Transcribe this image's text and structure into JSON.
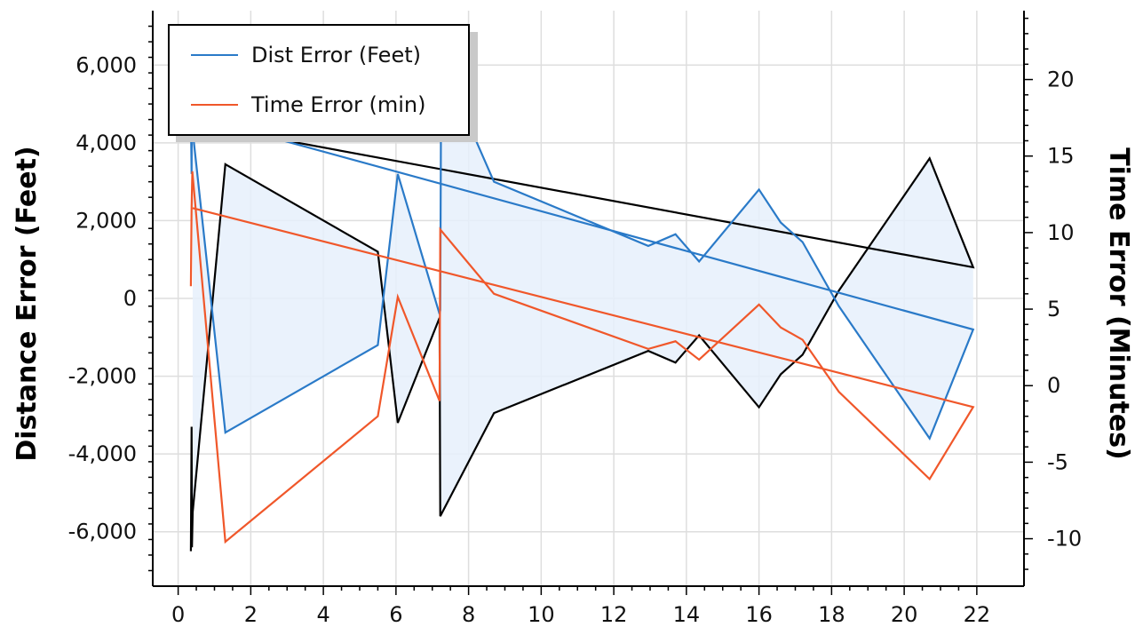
{
  "chart_data": {
    "type": "line",
    "title": "",
    "xlabel": "",
    "ylabel_left": "Distance Error (Feet)",
    "ylabel_right": "Time Error (Minutes)",
    "xlim": [
      -0.7,
      23.3
    ],
    "ylim_left": [
      -7400,
      7400
    ],
    "ylim_right": [
      -13.1,
      24.5
    ],
    "x_ticks": [
      0,
      2,
      4,
      6,
      8,
      10,
      12,
      14,
      16,
      18,
      20,
      22
    ],
    "y_left_ticks": [
      -6000,
      -4000,
      -2000,
      0,
      2000,
      4000,
      6000
    ],
    "y_left_tick_labels": [
      "-6,000",
      "-4,000",
      "-2,000",
      "0",
      "2,000",
      "4,000",
      "6,000"
    ],
    "y_right_ticks": [
      -10,
      -5,
      0,
      5,
      10,
      15,
      20
    ],
    "y_right_tick_labels": [
      "-10",
      "-5",
      "0",
      "5",
      "10",
      "15",
      "20"
    ],
    "grid": true,
    "legend_position": "top-left",
    "colors": {
      "dist": "#2a7ac8",
      "time": "#f0572a",
      "envelope": "#000000",
      "band_fill": "#e6f0fb"
    },
    "series": [
      {
        "name": "Dist Error (Feet)",
        "axis": "left",
        "color": "#2a7ac8",
        "x": [
          0.35,
          0.37,
          0.38,
          0.4,
          1.3,
          5.5,
          6.05,
          7.2,
          7.22,
          7.24,
          7.95,
          8.7,
          12.95,
          13.7,
          14.35,
          16.0,
          16.6,
          17.2,
          18.2,
          20.7,
          21.9,
          0.38
        ],
        "y": [
          4700,
          3200,
          5800,
          4300,
          -3450,
          -1200,
          3200,
          -400,
          -300,
          4800,
          4600,
          3000,
          1350,
          1650,
          950,
          2800,
          1950,
          1450,
          -200,
          -3600,
          -800,
          4700
        ]
      },
      {
        "name": "Time Error (min)",
        "axis": "right",
        "color": "#f0572a",
        "x": [
          0.35,
          0.37,
          0.39,
          1.3,
          5.5,
          6.05,
          7.2,
          7.22,
          8.7,
          12.95,
          13.7,
          14.35,
          16.0,
          16.6,
          17.2,
          18.2,
          20.7,
          21.9,
          0.4
        ],
        "y": [
          6.5,
          11.6,
          14.0,
          -10.2,
          -2.0,
          5.8,
          -1.0,
          10.2,
          6.0,
          2.4,
          2.9,
          1.7,
          5.3,
          3.8,
          3.0,
          -0.4,
          -6.1,
          -1.4,
          11.6
        ]
      },
      {
        "name": "",
        "axis": "left",
        "color": "#000000",
        "x": [
          0.35,
          0.37,
          0.38,
          0.4,
          1.3,
          5.5,
          6.05,
          7.2,
          7.22,
          8.7,
          12.95,
          13.7,
          14.35,
          16.0,
          16.6,
          17.2,
          18.2,
          20.7,
          21.9,
          0.4
        ],
        "y": [
          -6500,
          -3300,
          -6400,
          -5500,
          3450,
          1200,
          -3200,
          -500,
          -5600,
          -2950,
          -1350,
          -1650,
          -950,
          -2800,
          -1950,
          -1450,
          200,
          3600,
          800,
          4500
        ]
      }
    ]
  }
}
